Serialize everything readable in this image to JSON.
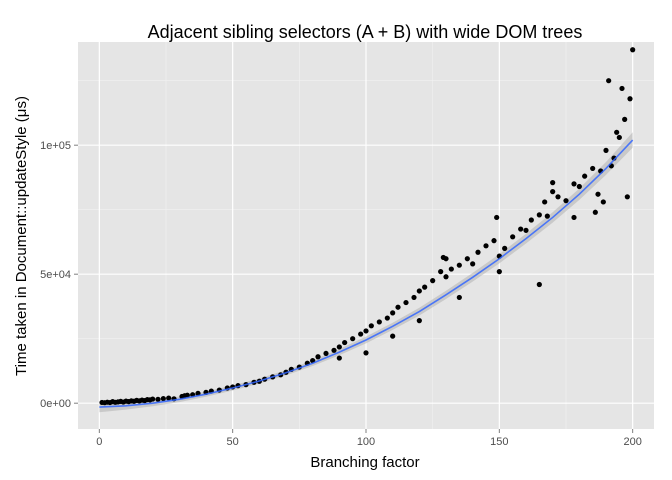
{
  "chart_data": {
    "type": "scatter",
    "title": "Adjacent sibling selectors (A + B) with wide DOM trees",
    "xlabel": "Branching factor",
    "ylabel": "Time taken in Document::updateStyle (μs)",
    "xlim": [
      -8,
      208
    ],
    "ylim": [
      -10000,
      140000
    ],
    "x_ticks": [
      0,
      50,
      100,
      150,
      200
    ],
    "x_tick_labels": [
      "0",
      "50",
      "100",
      "150",
      "200"
    ],
    "y_ticks": [
      0,
      50000,
      100000
    ],
    "y_tick_labels": [
      "0e+00",
      "5e+04",
      "1e+05"
    ],
    "grid": true,
    "legend": "none",
    "colors": {
      "panel_background": "#e5e5e5",
      "grid_major": "#ffffff",
      "grid_minor": "#f2f2f2",
      "points": "#000000",
      "smooth_line": "#3366ff",
      "confidence_band": "#b3b3b3"
    },
    "series": [
      {
        "kind": "points",
        "x": [
          1,
          2,
          3,
          4,
          5,
          6,
          7,
          8,
          9,
          10,
          11,
          12,
          13,
          14,
          15,
          16,
          17,
          18,
          19,
          20,
          22,
          24,
          26,
          28,
          31,
          32,
          33,
          35,
          37,
          40,
          42,
          45,
          48,
          50,
          52,
          55,
          58,
          60,
          62,
          65,
          68,
          70,
          72,
          75,
          78,
          80,
          82,
          85,
          88,
          90,
          92,
          95,
          98,
          100,
          102,
          105,
          108,
          110,
          112,
          115,
          118,
          120,
          122,
          125,
          128,
          129,
          130,
          132,
          135,
          138,
          140,
          142,
          145,
          148,
          149,
          150,
          152,
          155,
          158,
          160,
          162,
          165,
          167,
          168,
          170,
          172,
          175,
          178,
          180,
          182,
          185,
          187,
          188,
          189,
          190,
          191,
          192,
          193,
          195,
          196,
          197,
          198,
          199,
          200,
          110,
          120,
          135,
          150,
          165,
          178,
          186,
          194,
          100,
          90,
          130,
          170
        ],
        "y": [
          300,
          200,
          400,
          250,
          600,
          350,
          500,
          700,
          450,
          800,
          600,
          900,
          750,
          1100,
          900,
          1200,
          1000,
          1400,
          1300,
          1600,
          1500,
          1800,
          2000,
          1700,
          2600,
          2900,
          3100,
          3300,
          3800,
          4200,
          4700,
          5100,
          5900,
          6300,
          6800,
          7200,
          8100,
          8500,
          9300,
          10200,
          11000,
          12000,
          13100,
          14000,
          15500,
          16500,
          18000,
          19300,
          20500,
          21800,
          23500,
          25000,
          26800,
          28000,
          30000,
          31500,
          33000,
          35000,
          37200,
          39000,
          41000,
          43500,
          45000,
          47500,
          51000,
          56500,
          49000,
          52000,
          53500,
          56000,
          54000,
          58500,
          61000,
          63000,
          72000,
          57000,
          60000,
          64500,
          67500,
          67000,
          71000,
          73000,
          78000,
          72500,
          82000,
          80000,
          78500,
          85000,
          84000,
          88000,
          91000,
          81000,
          90000,
          78000,
          98000,
          125000,
          92000,
          95000,
          103000,
          122000,
          110000,
          80000,
          118000,
          137000,
          26000,
          32000,
          41000,
          51000,
          46000,
          72000,
          74000,
          105000,
          19500,
          17500,
          56000,
          85500
        ]
      },
      {
        "kind": "smooth",
        "x": [
          0,
          10,
          20,
          30,
          40,
          50,
          60,
          70,
          80,
          90,
          100,
          110,
          120,
          130,
          140,
          150,
          160,
          170,
          180,
          190,
          200
        ],
        "y": [
          -1500,
          -1000,
          0,
          1500,
          3500,
          5900,
          8600,
          11800,
          15500,
          19800,
          24500,
          29800,
          35500,
          42000,
          48800,
          56000,
          63800,
          72000,
          81000,
          91000,
          102000
        ],
        "band": [
          2000,
          1500,
          1200,
          1100,
          1000,
          1000,
          1000,
          1000,
          1100,
          1200,
          1300,
          1400,
          1500,
          1600,
          1700,
          1800,
          1900,
          2000,
          2200,
          2500,
          3000
        ]
      }
    ]
  }
}
